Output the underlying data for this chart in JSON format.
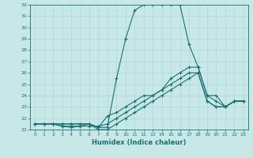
{
  "xlabel": "Humidex (Indice chaleur)",
  "bg_color": "#c8e8e8",
  "grid_color": "#b0d4d4",
  "line_color": "#1a7070",
  "xlim": [
    -0.5,
    23.5
  ],
  "ylim": [
    21,
    32
  ],
  "yticks": [
    21,
    22,
    23,
    24,
    25,
    26,
    27,
    28,
    29,
    30,
    31,
    32
  ],
  "xticks": [
    0,
    1,
    2,
    3,
    4,
    5,
    6,
    7,
    8,
    9,
    10,
    11,
    12,
    13,
    14,
    15,
    16,
    17,
    18,
    19,
    20,
    21,
    22,
    23
  ],
  "hours": [
    0,
    1,
    2,
    3,
    4,
    5,
    6,
    7,
    8,
    9,
    10,
    11,
    12,
    13,
    14,
    15,
    16,
    17,
    18,
    19,
    20,
    21,
    22,
    23
  ],
  "series": [
    [
      21.5,
      21.5,
      21.5,
      21.5,
      21.5,
      21.5,
      21.5,
      21.2,
      21.2,
      25.5,
      29.0,
      31.5,
      32.0,
      32.0,
      32.0,
      32.0,
      32.0,
      28.5,
      26.5,
      24.0,
      24.0,
      23.0,
      23.5,
      23.5
    ],
    [
      21.5,
      21.5,
      21.5,
      21.3,
      21.3,
      21.3,
      21.3,
      21.3,
      21.5,
      22.0,
      22.5,
      23.0,
      23.5,
      24.0,
      24.5,
      25.5,
      26.0,
      26.5,
      26.5,
      24.0,
      23.5,
      23.0,
      23.5,
      23.5
    ],
    [
      21.5,
      21.5,
      21.5,
      21.3,
      21.2,
      21.3,
      21.5,
      21.2,
      22.2,
      22.5,
      23.0,
      23.5,
      24.0,
      24.0,
      24.5,
      25.0,
      25.5,
      26.0,
      26.0,
      23.5,
      23.0,
      23.0,
      23.5,
      23.5
    ],
    [
      21.5,
      21.5,
      21.5,
      21.5,
      21.5,
      21.5,
      21.5,
      21.0,
      21.0,
      21.5,
      22.0,
      22.5,
      23.0,
      23.5,
      24.0,
      24.5,
      25.0,
      25.5,
      26.0,
      23.5,
      23.0,
      23.0,
      23.5,
      23.5
    ]
  ]
}
